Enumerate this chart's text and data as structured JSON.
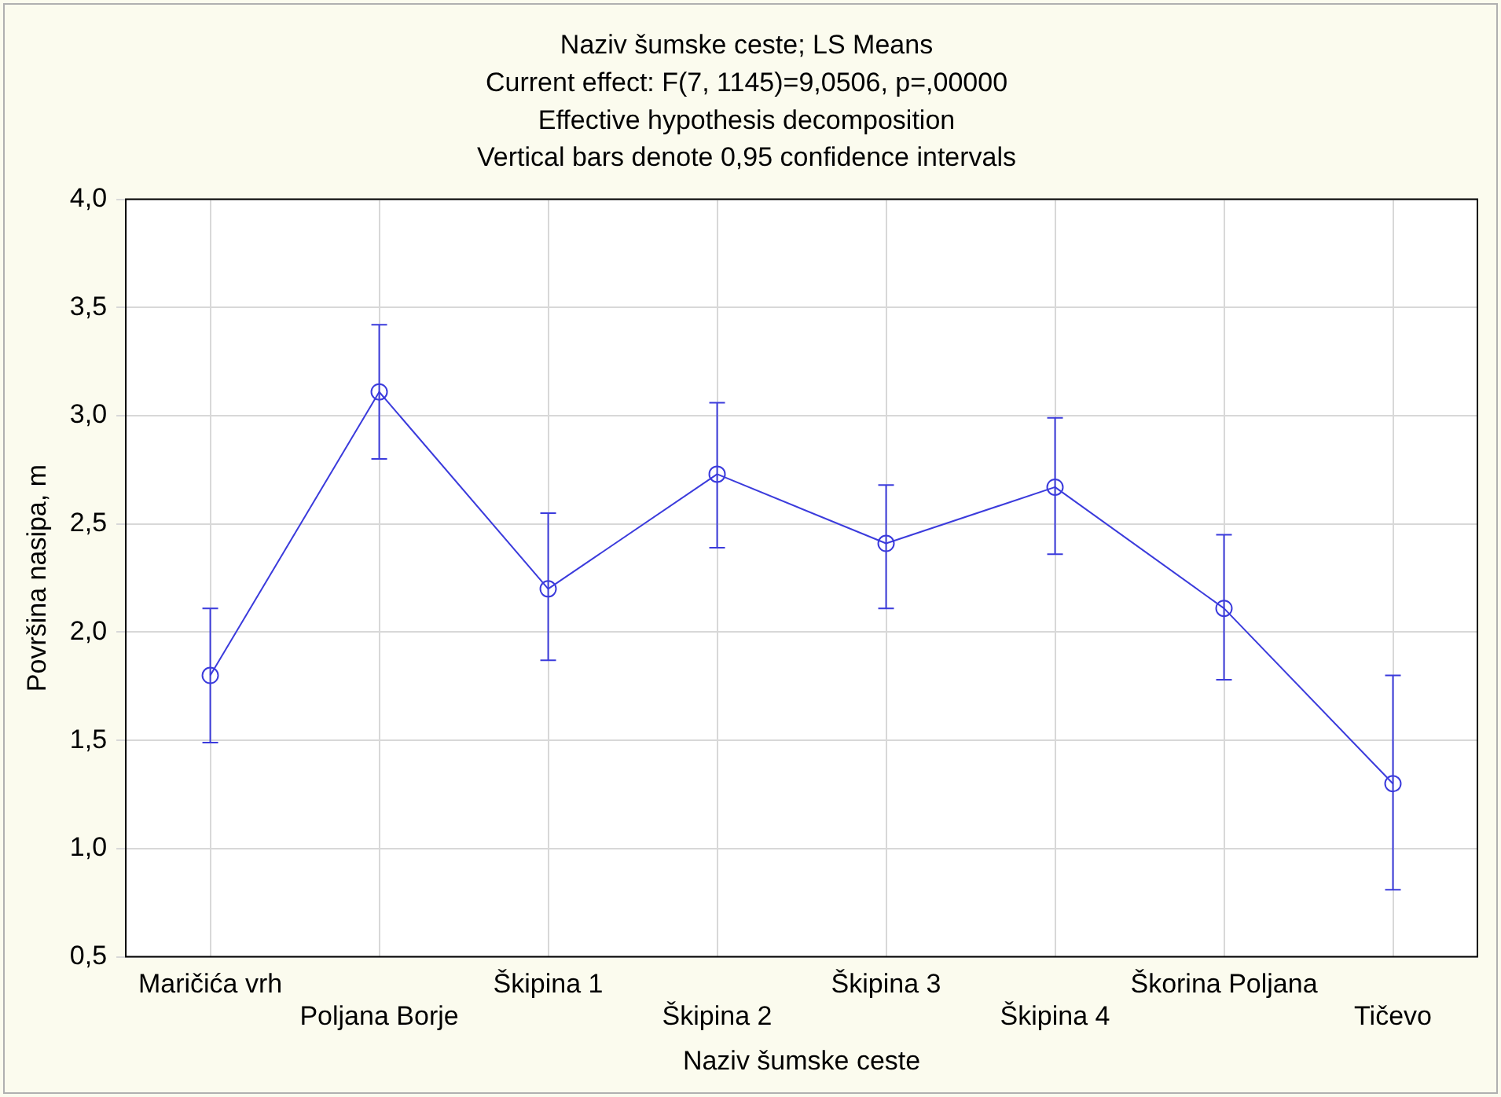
{
  "chart_data": {
    "type": "line",
    "title": "Naziv šumske ceste; LS Means",
    "subtitle": "Current effect: F(7, 1145)=9,0506, p=,00000",
    "annotations": [
      "Effective hypothesis decomposition",
      "Vertical bars denote 0,95 confidence intervals"
    ],
    "xlabel": "Naziv šumske ceste",
    "ylabel": "Površina nasipa, m",
    "categories": [
      "Maričića vrh",
      "Poljana Borje",
      "Škipina 1",
      "Škipina 2",
      "Škipina 3",
      "Škipina 4",
      "Škorina Poljana",
      "Tičevo"
    ],
    "series": [
      {
        "color": "#3b3bdc",
        "values": [
          1.8,
          3.11,
          2.2,
          2.73,
          2.41,
          2.67,
          2.11,
          1.3
        ],
        "errors": [
          [
            1.49,
            2.11
          ],
          [
            2.8,
            3.42
          ],
          [
            1.87,
            2.55
          ],
          [
            2.39,
            3.06
          ],
          [
            2.11,
            2.68
          ],
          [
            2.36,
            2.99
          ],
          [
            1.78,
            2.45
          ],
          [
            0.81,
            1.8
          ]
        ]
      }
    ],
    "ylim": [
      0.5,
      4.0
    ],
    "yticks": [
      {
        "value": 0.5,
        "label": "0,5"
      },
      {
        "value": 1.0,
        "label": "1,0"
      },
      {
        "value": 1.5,
        "label": "1,5"
      },
      {
        "value": 2.0,
        "label": "2,0"
      },
      {
        "value": 2.5,
        "label": "2,5"
      },
      {
        "value": 3.0,
        "label": "3,0"
      },
      {
        "value": 3.5,
        "label": "3,5"
      },
      {
        "value": 4.0,
        "label": "4,0"
      }
    ],
    "grid": true,
    "legend": false,
    "marker": "circle",
    "line_style": "solid"
  }
}
